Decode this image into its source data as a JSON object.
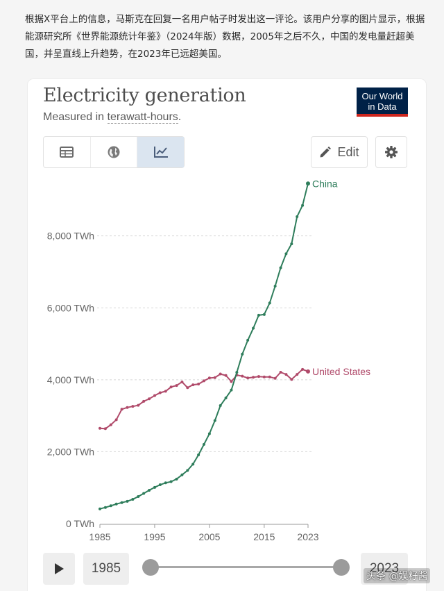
{
  "article": {
    "text": "根据X平台上的信息，马斯克在回复一名用户帖子时发出这一评论。该用户分享的图片显示，根据能源研究所《世界能源统计年鉴》（2024年版）数据，2005年之后不久，中国的发电量赶超美国，并呈直线上升趋势，在2023年已远超美国。"
  },
  "chart_header": {
    "title": "Electricity generation",
    "subtitle_prefix": "Measured in ",
    "subtitle_unit": "terawatt-hours",
    "subtitle_suffix": "."
  },
  "logo": {
    "line1": "Our World",
    "line2": "in Data"
  },
  "toolbar": {
    "tabs": [
      {
        "icon": "table-icon"
      },
      {
        "icon": "globe-icon"
      },
      {
        "icon": "line-chart-icon",
        "active": true
      }
    ],
    "edit_label": "Edit",
    "edit_icon": "pencil-icon",
    "settings_icon": "gear-icon"
  },
  "timeline": {
    "start_year": "1985",
    "end_year": "2023",
    "play_icon": "play-icon"
  },
  "watermark": "头条 @娱籽酱",
  "colors": {
    "china": "#2e7d5b",
    "united_states": "#b04a6a",
    "logo_bg": "#002147",
    "logo_accent": "#ce261e",
    "active_tab": "#dbe5f0"
  },
  "chart_data": {
    "type": "line",
    "title": "Electricity generation",
    "subtitle": "Measured in terawatt-hours.",
    "xlabel": "",
    "ylabel": "",
    "xlim": [
      1985,
      2023
    ],
    "ylim": [
      0,
      9500
    ],
    "x_ticks": [
      1985,
      1995,
      2005,
      2015,
      2023
    ],
    "y_ticks": [
      {
        "value": 0,
        "label": "0 TWh"
      },
      {
        "value": 2000,
        "label": "2,000 TWh"
      },
      {
        "value": 4000,
        "label": "4,000 TWh"
      },
      {
        "value": 6000,
        "label": "6,000 TWh"
      },
      {
        "value": 8000,
        "label": "8,000 TWh"
      }
    ],
    "grid": "horizontal-dotted",
    "legend": "line-end labels",
    "x": [
      1985,
      1986,
      1987,
      1988,
      1989,
      1990,
      1991,
      1992,
      1993,
      1994,
      1995,
      1996,
      1997,
      1998,
      1999,
      2000,
      2001,
      2002,
      2003,
      2004,
      2005,
      2006,
      2007,
      2008,
      2009,
      2010,
      2011,
      2012,
      2013,
      2014,
      2015,
      2016,
      2017,
      2018,
      2019,
      2020,
      2021,
      2022,
      2023
    ],
    "series": [
      {
        "name": "China",
        "values": [
          411,
          449,
          497,
          545,
          585,
          621,
          677,
          754,
          839,
          928,
          1007,
          1081,
          1134,
          1167,
          1239,
          1356,
          1480,
          1654,
          1911,
          2203,
          2500,
          2866,
          3282,
          3496,
          3714,
          4208,
          4713,
          5100,
          5432,
          5794,
          5815,
          6133,
          6604,
          7112,
          7503,
          7779,
          8534,
          8849,
          9456
        ]
      },
      {
        "name": "United States",
        "values": [
          2650,
          2640,
          2750,
          2890,
          3180,
          3230,
          3260,
          3290,
          3400,
          3470,
          3560,
          3640,
          3680,
          3800,
          3840,
          3940,
          3780,
          3860,
          3880,
          3970,
          4050,
          4060,
          4160,
          4120,
          3950,
          4130,
          4100,
          4050,
          4070,
          4090,
          4080,
          4080,
          4040,
          4210,
          4150,
          4010,
          4150,
          4290,
          4230
        ]
      }
    ]
  }
}
